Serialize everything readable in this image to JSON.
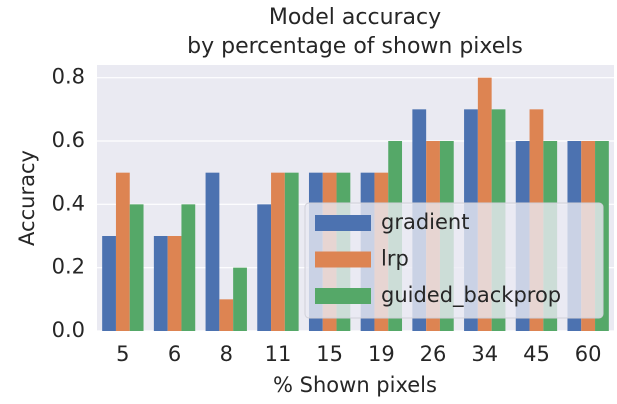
{
  "chart_data": {
    "type": "bar",
    "title": [
      "Model accuracy",
      "by percentage of shown pixels"
    ],
    "x_label": "% Shown pixels",
    "y_label": "Accuracy",
    "categories": [
      "5",
      "6",
      "8",
      "11",
      "15",
      "19",
      "26",
      "34",
      "45",
      "60"
    ],
    "series": [
      {
        "name": "gradient",
        "color": "#4c72b0",
        "values": [
          0.3,
          0.3,
          0.5,
          0.4,
          0.5,
          0.5,
          0.7,
          0.7,
          0.6,
          0.6
        ]
      },
      {
        "name": "lrp",
        "color": "#dd8452",
        "values": [
          0.5,
          0.3,
          0.1,
          0.5,
          0.5,
          0.5,
          0.6,
          0.8,
          0.7,
          0.6
        ]
      },
      {
        "name": "guided_backprop",
        "color": "#55a868",
        "values": [
          0.4,
          0.4,
          0.2,
          0.5,
          0.5,
          0.6,
          0.6,
          0.7,
          0.6,
          0.6
        ]
      }
    ],
    "ylim": [
      0,
      0.84
    ],
    "yticks": [
      {
        "value": 0,
        "label": "0.0"
      },
      0.2,
      0.4,
      0.6,
      0.8
    ],
    "grid": true,
    "legend": "lower right"
  }
}
